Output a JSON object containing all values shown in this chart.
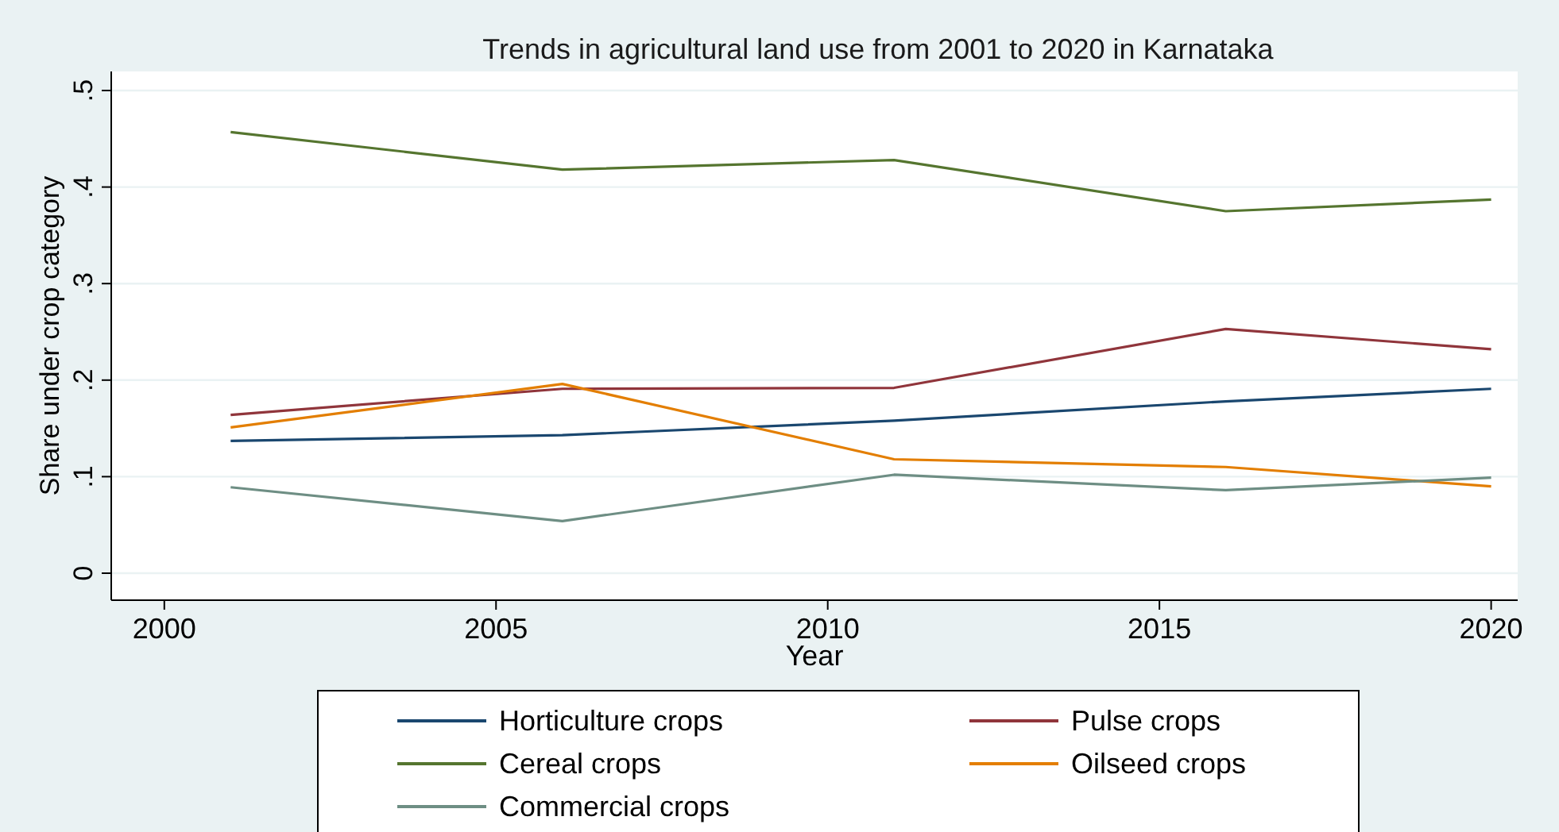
{
  "chart_data": {
    "type": "line",
    "title": "Trends in agricultural land use from 2001 to 2020 in Karnataka",
    "xlabel": "Year",
    "ylabel": "Share under crop category",
    "x": [
      2001,
      2006,
      2011,
      2016,
      2020
    ],
    "series": [
      {
        "name": "Horticulture crops",
        "color": "#1a476f",
        "values": [
          0.137,
          0.143,
          0.158,
          0.178,
          0.191
        ]
      },
      {
        "name": "Pulse crops",
        "color": "#90353b",
        "values": [
          0.164,
          0.191,
          0.192,
          0.253,
          0.232
        ]
      },
      {
        "name": "Cereal crops",
        "color": "#55752f",
        "values": [
          0.457,
          0.418,
          0.428,
          0.375,
          0.387
        ]
      },
      {
        "name": "Oilseed crops",
        "color": "#e37e00",
        "values": [
          0.151,
          0.196,
          0.118,
          0.11,
          0.09
        ]
      },
      {
        "name": "Commercial crops",
        "color": "#6e8e84",
        "values": [
          0.089,
          0.054,
          0.102,
          0.086,
          0.099
        ]
      }
    ],
    "xlim": [
      1999.2,
      2020.4
    ],
    "xticks": [
      2000,
      2005,
      2010,
      2015,
      2020
    ],
    "ylim": [
      0,
      0.5
    ],
    "yticks": [
      {
        "value": 0,
        "label": "0"
      },
      {
        "value": 0.1,
        "label": ".1"
      },
      {
        "value": 0.2,
        "label": ".2"
      },
      {
        "value": 0.3,
        "label": ".3"
      },
      {
        "value": 0.4,
        "label": ".4"
      },
      {
        "value": 0.5,
        "label": ".5"
      }
    ],
    "grid": "y",
    "legend": "bottom",
    "marker": "none",
    "line_style": "solid"
  }
}
